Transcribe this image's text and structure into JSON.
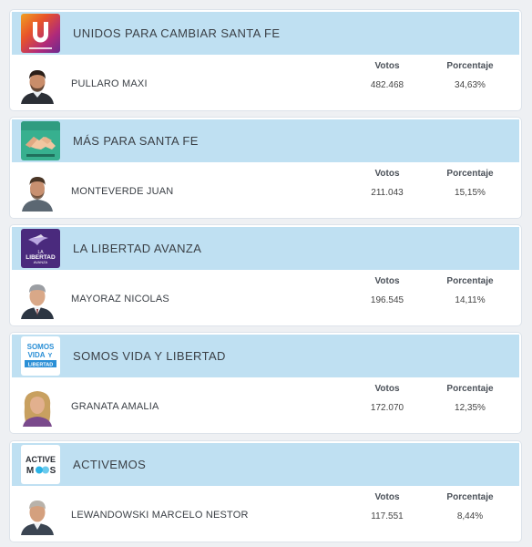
{
  "headers": {
    "votos": "Votos",
    "porcentaje": "Porcentaje"
  },
  "results": [
    {
      "party": "UNIDOS PARA CAMBIAR SANTA FE",
      "candidate": "PULLARO MAXI",
      "votos": "482.468",
      "porcentaje": "34,63%",
      "logo_icon": "unidos-u-logo",
      "logo_color": "#7a2c8f"
    },
    {
      "party": "MÁS PARA SANTA FE",
      "candidate": "MONTEVERDE JUAN",
      "votos": "211.043",
      "porcentaje": "15,15%",
      "logo_icon": "handshake-logo",
      "logo_color": "#2fa48a"
    },
    {
      "party": "LA LIBERTAD AVANZA",
      "candidate": "MAYORAZ NICOLAS",
      "votos": "196.545",
      "porcentaje": "14,11%",
      "logo_icon": "libertad-avanza-logo",
      "logo_color": "#4a2a7d",
      "logo_text": [
        "LA",
        "LIBERTAD",
        "AVANZA"
      ]
    },
    {
      "party": "SOMOS VIDA Y LIBERTAD",
      "candidate": "GRANATA AMALIA",
      "votos": "172.070",
      "porcentaje": "12,35%",
      "logo_icon": "somos-vida-logo",
      "logo_color": "#2a8fd6",
      "logo_text": [
        "SOMOS",
        "VIDA",
        "Y",
        "LIBERTAD"
      ]
    },
    {
      "party": "ACTIVEMOS",
      "candidate": "LEWANDOWSKI MARCELO NESTOR",
      "votos": "117.551",
      "porcentaje": "8,44%",
      "logo_icon": "activemos-logo",
      "logo_color": "#2bb3e6",
      "logo_text": [
        "ACTIVE",
        "M",
        "S"
      ]
    }
  ]
}
